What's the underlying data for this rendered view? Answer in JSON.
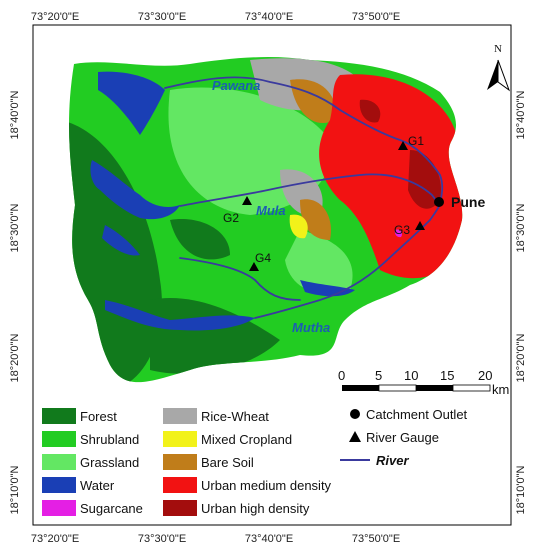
{
  "colors": {
    "forest": "#117a1c",
    "shrubland": "#22cc22",
    "grassland": "#63e763",
    "water": "#1a3fb5",
    "sugarcane": "#e41fe4",
    "rice_wheat": "#a8a8a8",
    "mixed_cropland": "#f2f21a",
    "bare_soil": "#c07d1a",
    "urban_medium": "#f21212",
    "urban_high": "#a30d0d",
    "river": "#3a3a9e",
    "river_label": "#1b5fb0"
  },
  "axes": {
    "top_ticks": [
      "73°20'0\"E",
      "73°30'0\"E",
      "73°40'0\"E",
      "73°50'0\"E"
    ],
    "bottom_ticks": [
      "73°20'0\"E",
      "73°30'0\"E",
      "73°40'0\"E",
      "73°50'0\"E"
    ],
    "left_ticks": [
      "18°40'0\"N",
      "18°30'0\"N",
      "18°20'0\"N",
      "18°10'0\"N"
    ],
    "right_ticks": [
      "18°40'0\"N",
      "18°30'0\"N",
      "18°20'0\"N",
      "18°10'0\"N"
    ]
  },
  "north_arrow": {
    "label": "N"
  },
  "scale_bar": {
    "ticks": [
      "0",
      "5",
      "10",
      "15",
      "20"
    ],
    "unit": "km"
  },
  "labels": {
    "pawana": "Pawana",
    "mula": "Mula",
    "mutha": "Mutha",
    "pune": "Pune",
    "g1": "G1",
    "g2": "G2",
    "g3": "G3",
    "g4": "G4"
  },
  "legend": {
    "land_cover": [
      {
        "label": "Forest",
        "color_key": "forest"
      },
      {
        "label": "Shrubland",
        "color_key": "shrubland"
      },
      {
        "label": "Grassland",
        "color_key": "grassland"
      },
      {
        "label": "Water",
        "color_key": "water"
      },
      {
        "label": "Sugarcane",
        "color_key": "sugarcane"
      },
      {
        "label": "Rice-Wheat",
        "color_key": "rice_wheat"
      },
      {
        "label": "Mixed Cropland",
        "color_key": "mixed_cropland"
      },
      {
        "label": "Bare Soil",
        "color_key": "bare_soil"
      },
      {
        "label": "Urban medium density",
        "color_key": "urban_medium"
      },
      {
        "label": "Urban high density",
        "color_key": "urban_high"
      }
    ],
    "symbols": [
      {
        "label": "Catchment Outlet",
        "icon": "circle-icon"
      },
      {
        "label": "River Gauge",
        "icon": "triangle-icon"
      },
      {
        "label": "River",
        "icon": "line-icon"
      }
    ]
  }
}
